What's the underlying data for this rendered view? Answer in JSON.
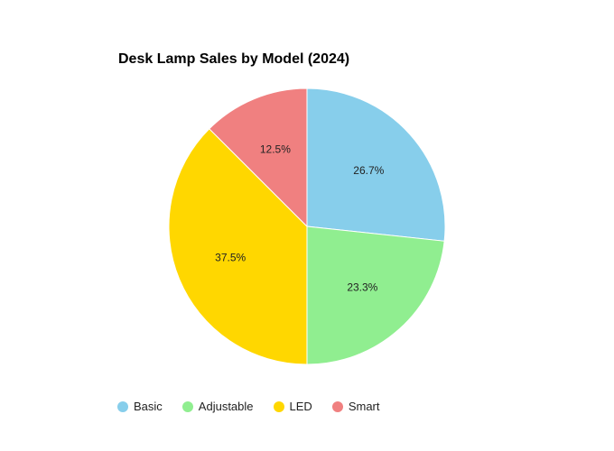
{
  "chart_data": {
    "type": "pie",
    "title": "Desk Lamp Sales by Model (2024)",
    "categories": [
      "Basic",
      "Adjustable",
      "LED",
      "Smart"
    ],
    "values": [
      26.7,
      23.3,
      37.5,
      12.5
    ],
    "labels": [
      "26.7%",
      "23.3%",
      "37.5%",
      "12.5%"
    ],
    "colors": [
      "#87CEEB",
      "#90EE90",
      "#FFD700",
      "#F08080"
    ],
    "legend_position": "bottom-left",
    "start_angle": "12 o'clock, clockwise"
  }
}
